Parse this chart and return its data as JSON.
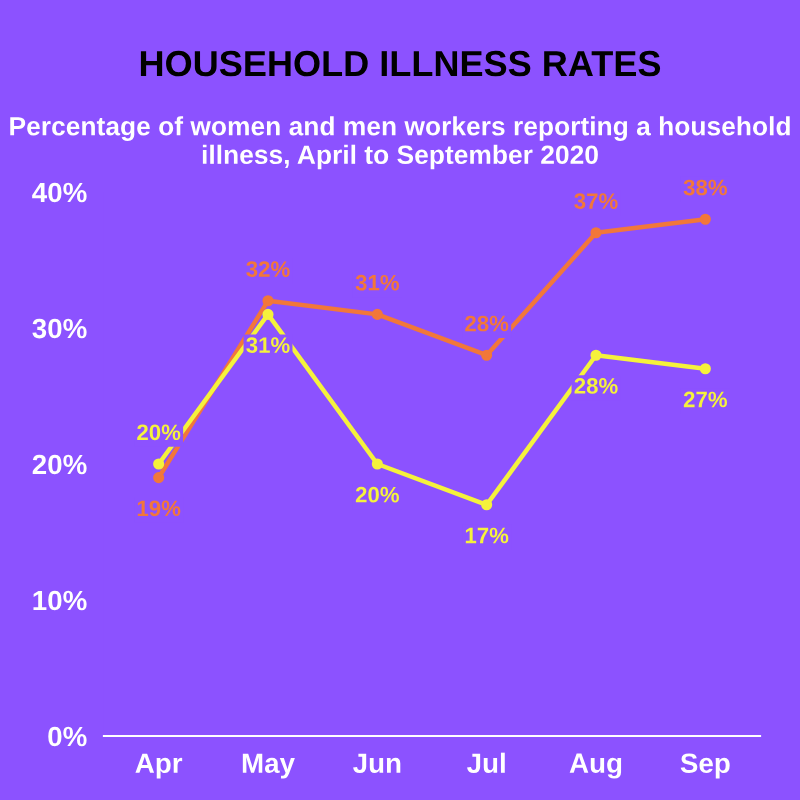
{
  "chart_data": {
    "type": "line",
    "title": "HOUSEHOLD ILLNESS RATES",
    "subtitle": "Percentage of women and men workers reporting a household illness, April to September 2020",
    "categories": [
      "Apr",
      "May",
      "Jun",
      "Jul",
      "Aug",
      "Sep"
    ],
    "series": [
      {
        "color": "#f2773a",
        "values": [
          19,
          32,
          31,
          28,
          37,
          38
        ],
        "value_labels": [
          "19%",
          "32%",
          "31%",
          "28%",
          "37%",
          "38%"
        ]
      },
      {
        "color": "#f5f23c",
        "values": [
          20,
          31,
          20,
          17,
          28,
          27
        ],
        "value_labels": [
          "20%",
          "31%",
          "20%",
          "17%",
          "28%",
          "27%"
        ]
      }
    ],
    "ylim": [
      0,
      40
    ],
    "yticks": [
      {
        "value": 0,
        "label": "0%"
      },
      {
        "value": 10,
        "label": "10%"
      },
      {
        "value": 20,
        "label": "20%"
      },
      {
        "value": 30,
        "label": "30%"
      },
      {
        "value": 40,
        "label": "40%"
      }
    ],
    "grid": false,
    "marker": "circle",
    "line_style": "solid"
  }
}
